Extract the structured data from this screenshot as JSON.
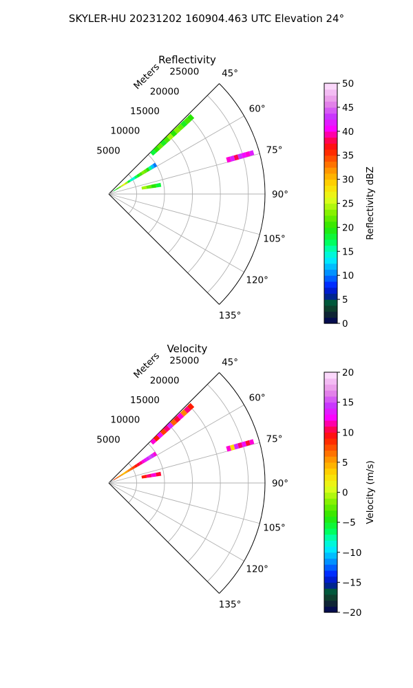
{
  "figure": {
    "title": "SKYLER-HU  20231202  160904.463 UTC Elevation 24°"
  },
  "chart_data": [
    {
      "type": "polar-sector",
      "title": "Reflectivity",
      "range_label": "Meters",
      "azimuth_range": [
        45,
        135
      ],
      "range_max": 28000,
      "range_ticks": [
        5000,
        10000,
        15000,
        20000,
        25000
      ],
      "azimuth_ticks": [
        "45°",
        "60°",
        "75°",
        "90°",
        "105°",
        "120°",
        "135°"
      ],
      "grid": true,
      "colorbar": {
        "label": "Reflectivity dBZ",
        "min": 0,
        "max": 50,
        "ticks": [
          "0",
          "5",
          "10",
          "15",
          "20",
          "25",
          "30",
          "35",
          "40",
          "45",
          "50"
        ]
      },
      "echo_bands": [
        {
          "azimuth": 47,
          "range_start": 10500,
          "range_end": 20500,
          "values": [
            18,
            20,
            22,
            19,
            21,
            24,
            20,
            23,
            22,
            19,
            21,
            20
          ]
        },
        {
          "azimuth": 58,
          "range_start": 1000,
          "range_end": 10000,
          "values": [
            18,
            20,
            22,
            25,
            27,
            24,
            18,
            15,
            14,
            17,
            19,
            21,
            23,
            22,
            20,
            16,
            12,
            10
          ]
        },
        {
          "azimuth": 74,
          "range_start": 22000,
          "range_end": 27000,
          "values": [
            40,
            42,
            38,
            43,
            41,
            40,
            42
          ]
        },
        {
          "azimuth": 80,
          "range_start": 6000,
          "range_end": 9500,
          "values": [
            24,
            22,
            20,
            18
          ]
        }
      ]
    },
    {
      "type": "polar-sector",
      "title": "Velocity",
      "range_label": "Meters",
      "azimuth_range": [
        45,
        135
      ],
      "range_max": 28000,
      "range_ticks": [
        5000,
        10000,
        15000,
        20000,
        25000
      ],
      "azimuth_ticks": [
        "45°",
        "60°",
        "75°",
        "90°",
        "105°",
        "120°",
        "135°"
      ],
      "grid": true,
      "colorbar": {
        "label": "Velocity (m/s)",
        "min": -20,
        "max": 20,
        "ticks": [
          "−20",
          "−15",
          "−10",
          "−5",
          "0",
          "5",
          "10",
          "15",
          "20"
        ]
      },
      "echo_bands": [
        {
          "azimuth": 47,
          "range_start": 10500,
          "range_end": 20500,
          "values": [
            12,
            9,
            13,
            8,
            11,
            14,
            7,
            10,
            12,
            6,
            11,
            9
          ]
        },
        {
          "azimuth": 58,
          "range_start": 1000,
          "range_end": 10000,
          "values": [
            8,
            7,
            6,
            5,
            4,
            5,
            6,
            7,
            8,
            9,
            10,
            11,
            12,
            13,
            14,
            15,
            14,
            12
          ]
        },
        {
          "azimuth": 74,
          "range_start": 22000,
          "range_end": 27000,
          "values": [
            12,
            3,
            14,
            11,
            13,
            10,
            12
          ]
        },
        {
          "azimuth": 80,
          "range_start": 6000,
          "range_end": 9500,
          "values": [
            9,
            11,
            12,
            10
          ]
        }
      ]
    }
  ]
}
